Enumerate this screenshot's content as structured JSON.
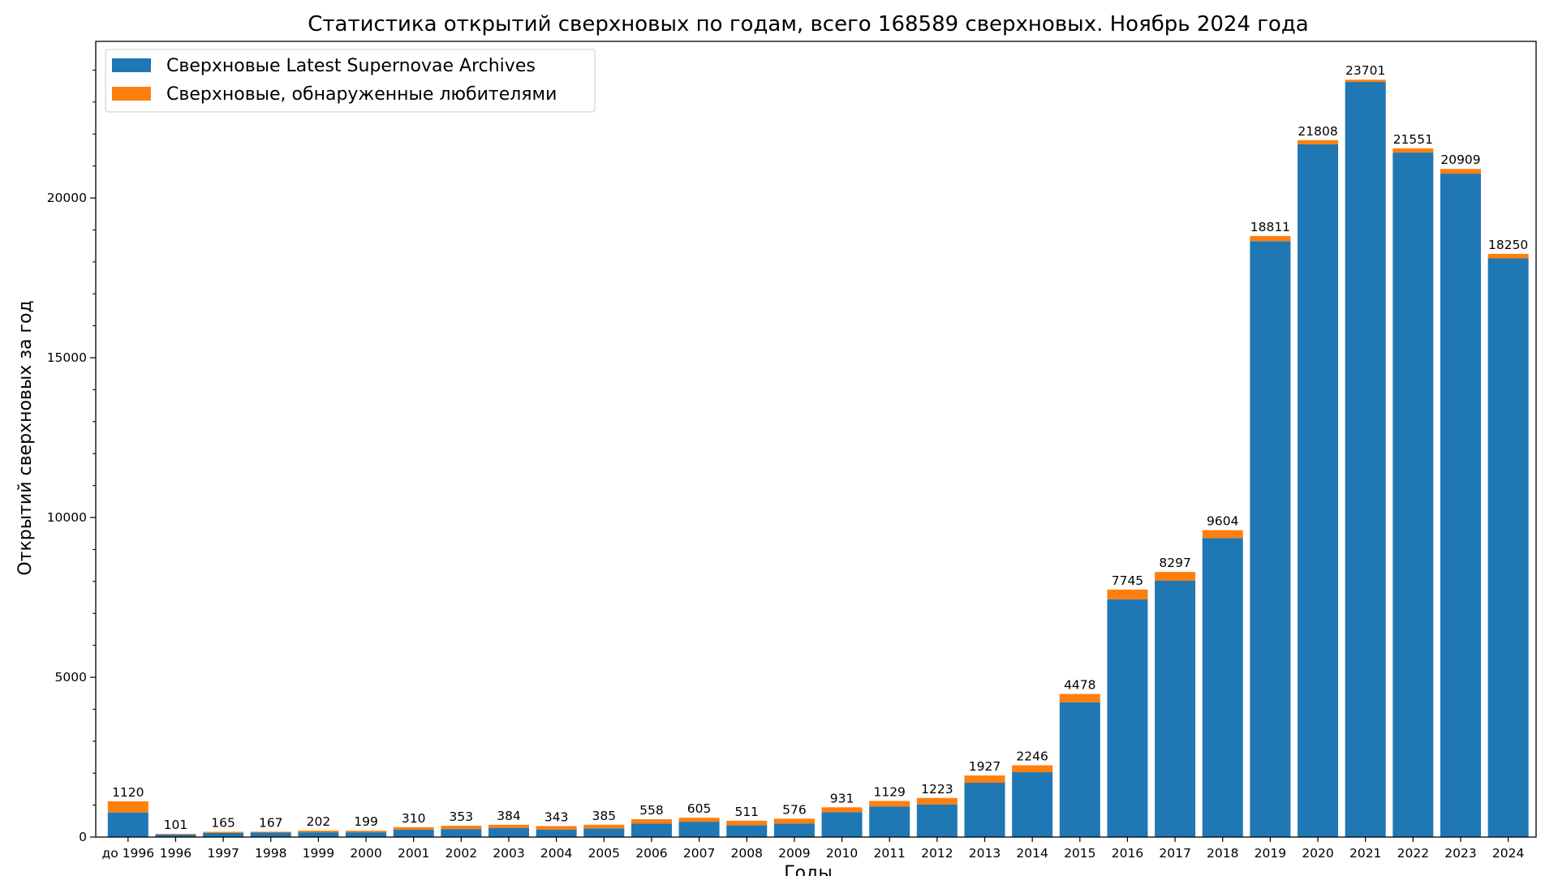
{
  "chart_data": {
    "type": "bar",
    "stacked": true,
    "title": "Статистика открытий сверхновых по годам, всего 168589 сверхновых. Ноябрь 2024 года",
    "xlabel": "Годы",
    "ylabel": "Открытий сверхновых за год",
    "ylim": [
      0,
      24900
    ],
    "yticks": [
      0,
      5000,
      10000,
      15000,
      20000
    ],
    "yticks_labels": [
      "0",
      "5000",
      "10000",
      "15000",
      "20000"
    ],
    "grid": false,
    "legend_position": "top-left",
    "categories": [
      "до 1996",
      "1996",
      "1997",
      "1998",
      "1999",
      "2000",
      "2001",
      "2002",
      "2003",
      "2004",
      "2005",
      "2006",
      "2007",
      "2008",
      "2009",
      "2010",
      "2011",
      "2012",
      "2013",
      "2014",
      "2015",
      "2016",
      "2017",
      "2018",
      "2019",
      "2020",
      "2021",
      "2022",
      "2023",
      "2024"
    ],
    "series": [
      {
        "name": "Сверхновые Latest Supernovae Archives",
        "color": "#1f77b4",
        "values": [
          770,
          80,
          130,
          140,
          150,
          150,
          230,
          250,
          280,
          230,
          270,
          420,
          480,
          370,
          420,
          780,
          960,
          1020,
          1700,
          2030,
          4220,
          7440,
          8020,
          9360,
          18650,
          21680,
          23630,
          21420,
          20760,
          18110
        ]
      },
      {
        "name": "Сверхновые, обнаруженные любителями",
        "color": "#ff7f0e",
        "values": [
          350,
          21,
          35,
          27,
          52,
          49,
          80,
          103,
          104,
          113,
          115,
          138,
          125,
          141,
          156,
          151,
          169,
          203,
          227,
          216,
          258,
          305,
          277,
          244,
          161,
          128,
          71,
          131,
          149,
          140
        ]
      }
    ],
    "totals": [
      "1120",
      "101",
      "165",
      "167",
      "202",
      "199",
      "310",
      "353",
      "384",
      "343",
      "385",
      "558",
      "605",
      "511",
      "576",
      "931",
      "1129",
      "1223",
      "1927",
      "2246",
      "4478",
      "7745",
      "8297",
      "9604",
      "18811",
      "21808",
      "23701",
      "21551",
      "20909",
      "18250"
    ]
  }
}
